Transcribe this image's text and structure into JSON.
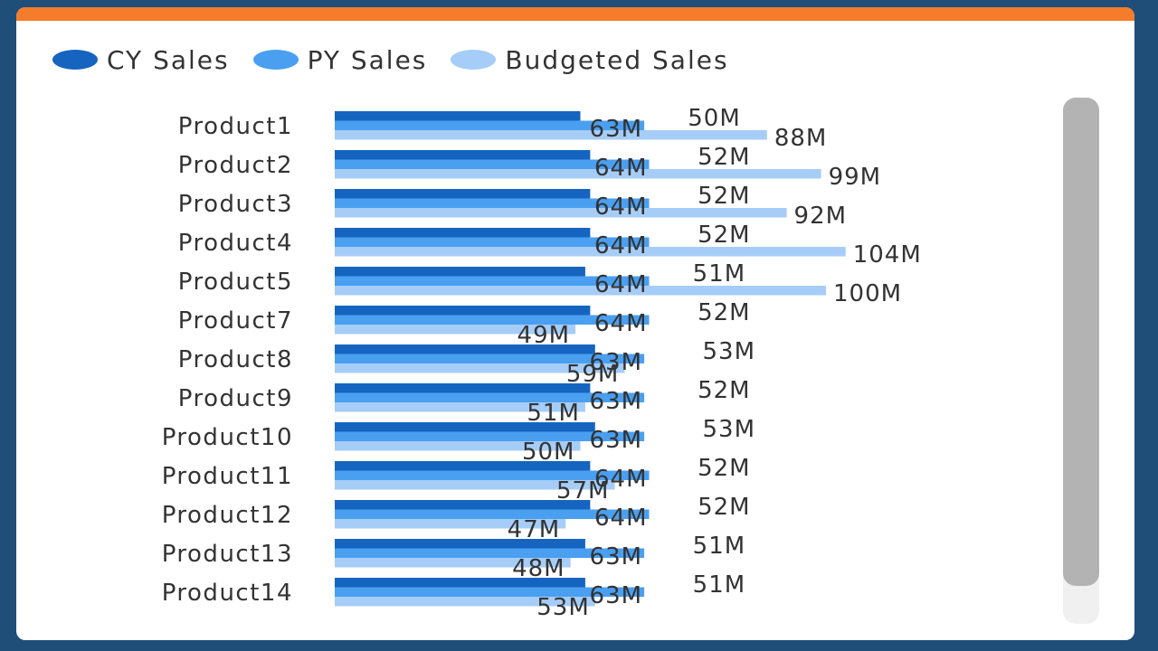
{
  "colors": {
    "cy": "#1565c0",
    "py": "#4a9ff0",
    "budget": "#a6cdf7",
    "accent_bar": "#f47c2a",
    "frame": "#1f4e79"
  },
  "legend": [
    {
      "label": "CY Sales",
      "series": "cy"
    },
    {
      "label": "PY Sales",
      "series": "py"
    },
    {
      "label": "Budgeted Sales",
      "series": "budget"
    }
  ],
  "chart_data": {
    "type": "bar",
    "orientation": "horizontal",
    "title": "",
    "xlabel": "",
    "ylabel": "",
    "legend_position": "top-left",
    "grid": false,
    "categories": [
      "Product1",
      "Product2",
      "Product3",
      "Product4",
      "Product5",
      "Product7",
      "Product8",
      "Product9",
      "Product10",
      "Product11",
      "Product12",
      "Product13",
      "Product14"
    ],
    "series": [
      {
        "name": "CY Sales",
        "key": "cy",
        "values": [
          50,
          52,
          52,
          52,
          51,
          52,
          53,
          52,
          53,
          52,
          52,
          51,
          51
        ],
        "labels": [
          "50M",
          "52M",
          "52M",
          "52M",
          "51M",
          "52M",
          "53M",
          "52M",
          "53M",
          "52M",
          "52M",
          "51M",
          "51M"
        ]
      },
      {
        "name": "PY Sales",
        "key": "py",
        "values": [
          63,
          64,
          64,
          64,
          64,
          64,
          63,
          63,
          63,
          64,
          64,
          63,
          63
        ],
        "labels": [
          "63M",
          "64M",
          "64M",
          "64M",
          "64M",
          "64M",
          "63M",
          "63M",
          "63M",
          "64M",
          "64M",
          "63M",
          "63M"
        ]
      },
      {
        "name": "Budgeted Sales",
        "key": "budget",
        "values": [
          88,
          99,
          92,
          104,
          100,
          49,
          59,
          51,
          50,
          57,
          47,
          48,
          53
        ],
        "labels": [
          "88M",
          "99M",
          "92M",
          "104M",
          "100M",
          "49M",
          "59M",
          "51M",
          "50M",
          "57M",
          "47M",
          "48M",
          "53M"
        ]
      }
    ],
    "xlim": [
      0,
      110
    ],
    "unit": "M"
  }
}
